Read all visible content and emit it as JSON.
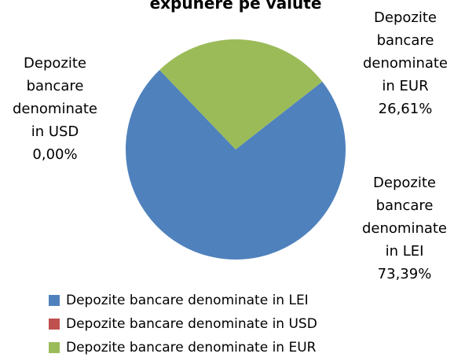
{
  "chart_data": {
    "type": "pie",
    "title": "expunere pe valute",
    "categories": [
      "Depozite bancare denominate in LEI",
      "Depozite bancare denominate in USD",
      "Depozite bancare denominate in EUR"
    ],
    "values": [
      73.39,
      0,
      26.61
    ],
    "value_labels": [
      "73,39%",
      "0,00%",
      "26,61%"
    ],
    "colors": [
      "#4f81bd",
      "#c0504d",
      "#9bbb59"
    ],
    "legend": "bottom"
  }
}
